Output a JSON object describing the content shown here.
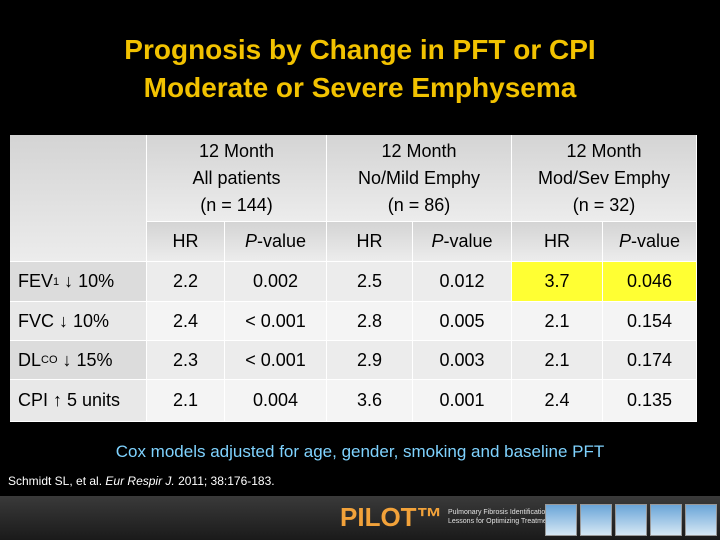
{
  "title": [
    "Prognosis by Change in PFT or CPI",
    "Moderate or Severe Emphysema"
  ],
  "table": {
    "groups": [
      [
        "12 Month",
        "All patients",
        "(n = 144)"
      ],
      [
        "12 Month",
        "No/Mild Emphy",
        "(n = 86)"
      ],
      [
        "12 Month",
        "Mod/Sev Emphy",
        "(n = 32)"
      ]
    ],
    "subheaders": [
      {
        "text": "HR"
      },
      {
        "italic": "P",
        "text": "-value"
      },
      {
        "text": "HR"
      },
      {
        "italic": "P",
        "text": "-value"
      },
      {
        "text": "HR"
      },
      {
        "italic": "P",
        "text": "-value"
      }
    ],
    "rows": [
      {
        "label": {
          "main": "FEV",
          "sub": "1",
          "rest": " ↓ 10%"
        },
        "cells": [
          "2.2",
          "0.002",
          "2.5",
          "0.012",
          "3.7",
          "0.046"
        ]
      },
      {
        "label": {
          "main": "FVC ↓ 10%"
        },
        "cells": [
          "2.4",
          "< 0.001",
          "2.8",
          "0.005",
          "2.1",
          "0.154"
        ]
      },
      {
        "label": {
          "main": "DL",
          "sub": "CO",
          "rest": " ↓ 15%"
        },
        "cells": [
          "2.3",
          "< 0.001",
          "2.9",
          "0.003",
          "2.1",
          "0.174"
        ]
      },
      {
        "label": {
          "main": "CPI ↑ 5 units"
        },
        "cells": [
          "2.1",
          "0.004",
          "3.6",
          "0.001",
          "2.4",
          "0.135"
        ]
      }
    ]
  },
  "note": "Cox models adjusted for age, gender, smoking and baseline PFT",
  "citation": {
    "before": "Schmidt SL, et al. ",
    "journal": "Eur Respir J.",
    "after": " 2011; 38:176-183."
  },
  "footer": {
    "logo": "PILOT™",
    "tagline": [
      "Pulmonary Fibrosis Identification:",
      "Lessons for Optimizing Treatment"
    ]
  }
}
